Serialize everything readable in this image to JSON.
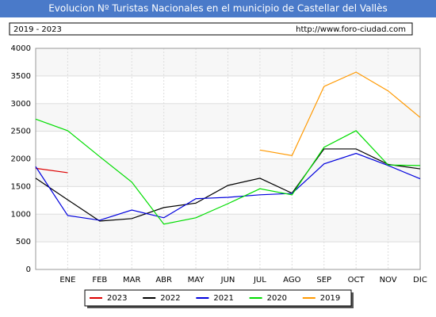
{
  "chart_data": {
    "type": "line",
    "title": "Evolucion Nº Turistas Nacionales en el municipio de Castellar del Vallès",
    "subtitle": "2019 - 2023",
    "source": "http://www.foro-ciudad.com",
    "categories": [
      null,
      "ENE",
      "FEB",
      "MAR",
      "ABR",
      "MAY",
      "JUN",
      "JUL",
      "AGO",
      "SEP",
      "OCT",
      "NOV",
      "DIC"
    ],
    "series": [
      {
        "name": "2023",
        "color": "#dd0000",
        "values": [
          1830,
          1750,
          null,
          null,
          null,
          null,
          null,
          null,
          null,
          null,
          null,
          null,
          null
        ]
      },
      {
        "name": "2022",
        "color": "#000000",
        "values": [
          1650,
          1260,
          875,
          920,
          1120,
          1200,
          1520,
          1650,
          1380,
          2180,
          2180,
          1900,
          1820
        ]
      },
      {
        "name": "2021",
        "color": "#0000dd",
        "values": [
          1860,
          975,
          890,
          1075,
          935,
          1280,
          1305,
          1350,
          1375,
          1910,
          2100,
          1880,
          1640
        ]
      },
      {
        "name": "2020",
        "color": "#00dd00",
        "values": [
          2720,
          2510,
          2040,
          1580,
          820,
          935,
          1190,
          1460,
          1350,
          2210,
          2510,
          1890,
          1880
        ]
      },
      {
        "name": "2019",
        "color": "#ff9900",
        "values": [
          null,
          null,
          null,
          null,
          null,
          null,
          null,
          2160,
          2060,
          3310,
          3570,
          3230,
          2750
        ]
      }
    ],
    "ylim": [
      0,
      4000
    ],
    "yticks": [
      0,
      500,
      1000,
      1500,
      2000,
      2500,
      3000,
      3500,
      4000
    ],
    "grid": true
  }
}
